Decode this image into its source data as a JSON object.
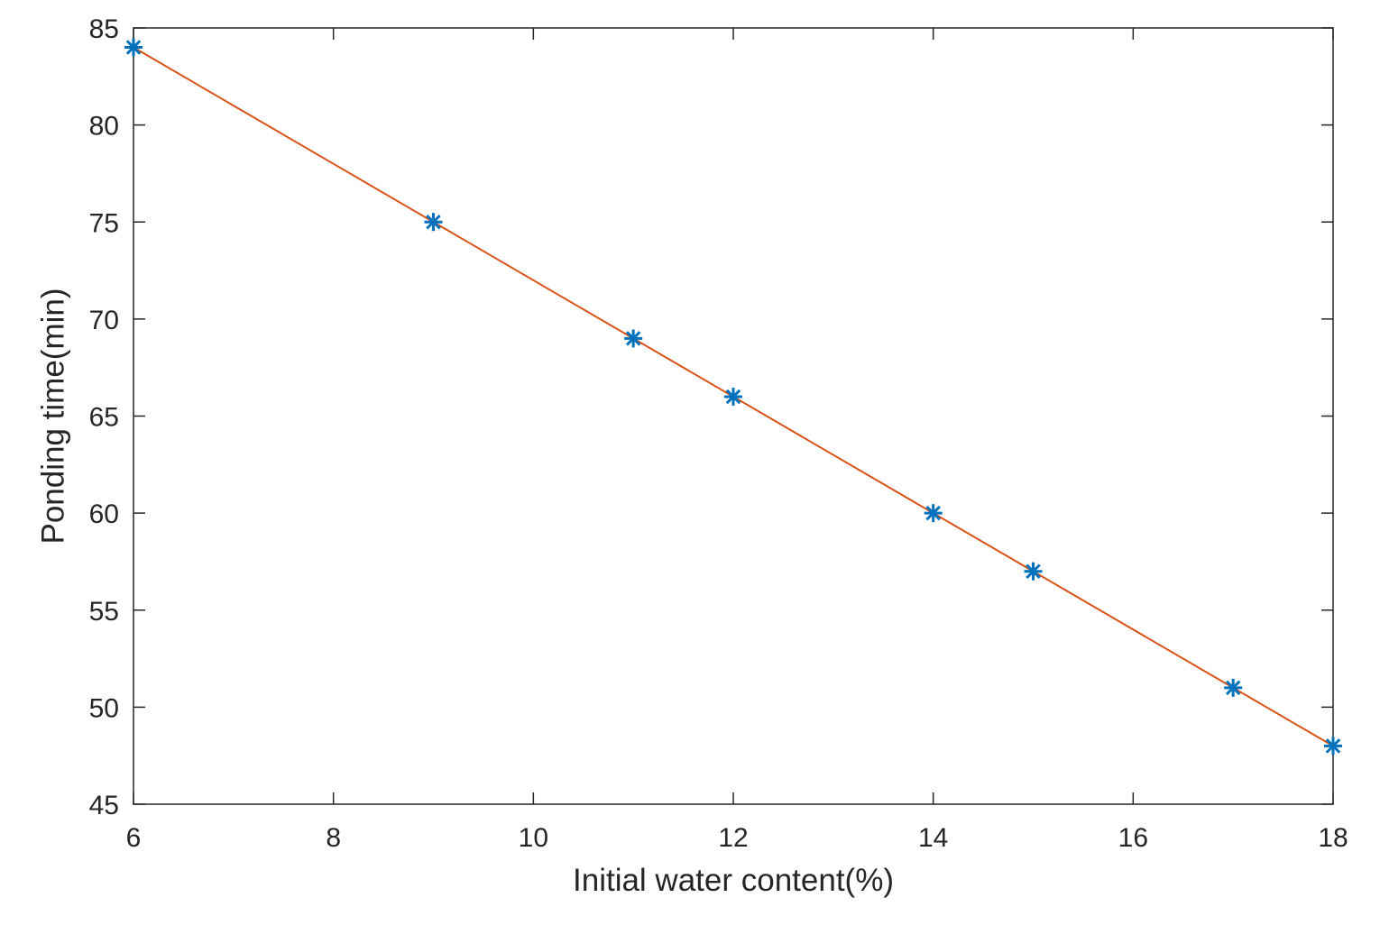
{
  "chart_data": {
    "type": "line",
    "title": "",
    "xlabel": "Initial water content(%)",
    "ylabel": "Ponding time(min)",
    "xlim": [
      6,
      18
    ],
    "ylim": [
      45,
      85
    ],
    "xticks": [
      6,
      8,
      10,
      12,
      14,
      16,
      18
    ],
    "yticks": [
      45,
      50,
      55,
      60,
      65,
      70,
      75,
      80,
      85
    ],
    "grid": false,
    "legend": "none",
    "series": [
      {
        "style": "markers",
        "marker": "asterisk",
        "color": "#0072BD",
        "x": [
          6,
          9,
          11,
          12,
          14,
          15,
          17,
          18
        ],
        "y": [
          84,
          75,
          69,
          66,
          60,
          57,
          51,
          48
        ]
      },
      {
        "style": "line",
        "color": "#D95319",
        "x": [
          6,
          18
        ],
        "y": [
          84,
          48
        ]
      }
    ]
  }
}
